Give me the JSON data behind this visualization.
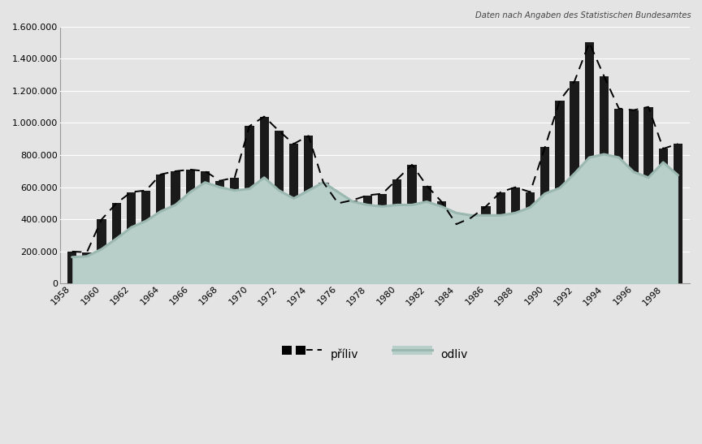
{
  "years": [
    1958,
    1959,
    1960,
    1961,
    1962,
    1963,
    1964,
    1965,
    1966,
    1967,
    1968,
    1969,
    1970,
    1971,
    1972,
    1973,
    1974,
    1975,
    1976,
    1977,
    1978,
    1979,
    1980,
    1981,
    1982,
    1983,
    1984,
    1985,
    1986,
    1987,
    1988,
    1989,
    1990,
    1991,
    1992,
    1993,
    1994,
    1995,
    1996,
    1997,
    1998,
    1999
  ],
  "priliv": [
    200000,
    195000,
    400000,
    500000,
    570000,
    580000,
    680000,
    700000,
    710000,
    700000,
    640000,
    660000,
    980000,
    1040000,
    950000,
    870000,
    920000,
    630000,
    500000,
    520000,
    550000,
    560000,
    650000,
    740000,
    610000,
    510000,
    370000,
    410000,
    480000,
    570000,
    600000,
    570000,
    850000,
    1140000,
    1260000,
    1500000,
    1290000,
    1090000,
    1080000,
    1100000,
    840000,
    870000
  ],
  "odliv": [
    165000,
    170000,
    215000,
    280000,
    350000,
    390000,
    450000,
    490000,
    570000,
    630000,
    600000,
    580000,
    590000,
    660000,
    580000,
    530000,
    580000,
    630000,
    570000,
    510000,
    490000,
    480000,
    490000,
    490000,
    510000,
    480000,
    440000,
    425000,
    425000,
    425000,
    440000,
    475000,
    560000,
    595000,
    685000,
    785000,
    805000,
    785000,
    695000,
    660000,
    755000,
    675000
  ],
  "bar_color": "#1a1a1a",
  "line_color": "#9ab8b0",
  "line_fill_color": "#b8cec8",
  "background_color": "#e4e4e4",
  "plot_bg_color": "#e4e4e4",
  "grid_color": "#ffffff",
  "source_text": "Daten nach Angaben des Statistischen Bundesamtes",
  "legend_priliv": "příliv",
  "legend_odliv": "odliv",
  "ylim": [
    0,
    1600000
  ],
  "yticks": [
    0,
    200000,
    400000,
    600000,
    800000,
    1000000,
    1200000,
    1400000,
    1600000
  ],
  "ytick_labels": [
    "0",
    "200.000",
    "400.000",
    "600.000",
    "800.000",
    "1.000.000",
    "1.200.000",
    "1.400.000",
    "1.600.000"
  ]
}
